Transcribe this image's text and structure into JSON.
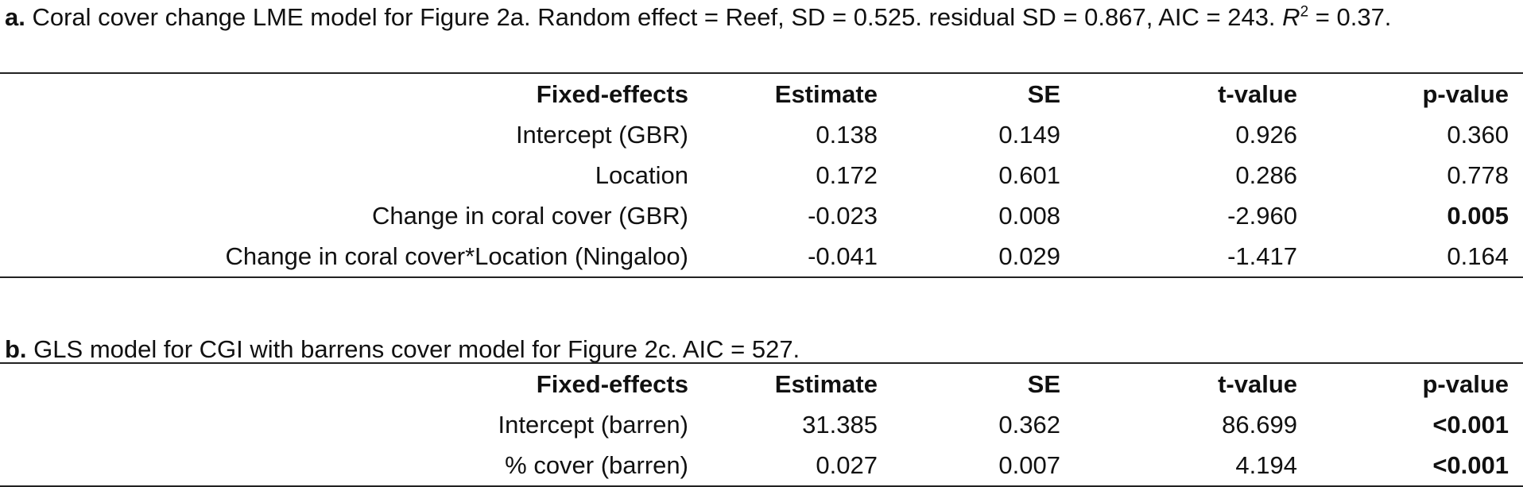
{
  "table_a": {
    "caption_tag": "a.",
    "caption_text": " Coral cover change LME model for Figure 2a. Random effect = Reef, SD = 0.525. residual SD = 0.867, AIC = 243. ",
    "caption_r": "R",
    "caption_sup": "2",
    "caption_end": " = 0.37.",
    "headers": [
      "Fixed-effects",
      "Estimate",
      "SE",
      "t-value",
      "p-value"
    ],
    "rows": [
      {
        "term": "Intercept (GBR)",
        "estimate": "0.138",
        "se": "0.149",
        "t": "0.926",
        "p": "0.360"
      },
      {
        "term": "Location",
        "estimate": "0.172",
        "se": "0.601",
        "t": "0.286",
        "p": "0.778"
      },
      {
        "term": "Change in coral cover (GBR)",
        "estimate": "-0.023",
        "se": "0.008",
        "t": "-2.960",
        "p": "0.005"
      },
      {
        "term": "Change in coral cover*Location (Ningaloo)",
        "estimate": "-0.041",
        "se": "0.029",
        "t": "-1.417",
        "p": "0.164"
      }
    ]
  },
  "table_b": {
    "caption_tag": "b.",
    "caption_text": " GLS model for CGI with barrens cover model for Figure 2c. AIC = 527.",
    "headers": [
      "Fixed-effects",
      "Estimate",
      "SE",
      "t-value",
      "p-value"
    ],
    "rows": [
      {
        "term": "Intercept (barren)",
        "estimate": "31.385",
        "se": "0.362",
        "t": "86.699",
        "p": "<0.001"
      },
      {
        "term": "% cover (barren)",
        "estimate": "0.027",
        "se": "0.007",
        "t": "4.194",
        "p": "<0.001"
      }
    ]
  }
}
